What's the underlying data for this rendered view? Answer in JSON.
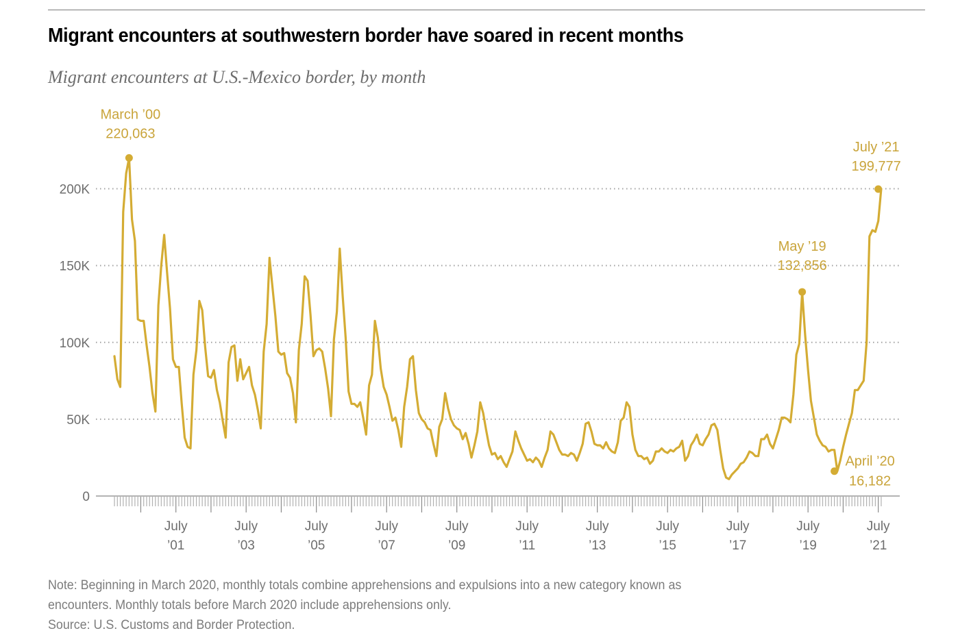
{
  "header": {
    "title": "Migrant encounters at southwestern border have soared in recent months",
    "subtitle": "Migrant encounters at U.S.-Mexico border, by month"
  },
  "footer": {
    "note_line1": "Note: Beginning in March 2020, monthly totals combine apprehensions and expulsions into a new category known as",
    "note_line2": "encounters. Monthly totals before March 2020 include apprehensions only.",
    "source": "Source: U.S. Customs and Border Protection."
  },
  "colors": {
    "line": "#d4ac34",
    "annotation": "#c9a43a",
    "grid": "#a0a0a0",
    "axis": "#9a9a9a",
    "text": "#6d6d6d"
  },
  "chart_data": {
    "type": "line",
    "title": "Migrant encounters at southwestern border have soared in recent months",
    "subtitle": "Migrant encounters at U.S.-Mexico border, by month",
    "xlabel": "",
    "ylabel": "",
    "x_start": "October 1999",
    "x_end": "July 2021",
    "x_frequency": "monthly",
    "ylim": [
      0,
      220000
    ],
    "grid": true,
    "y_ticks": [
      {
        "value": 0,
        "label": "0"
      },
      {
        "value": 50000,
        "label": "50K"
      },
      {
        "value": 100000,
        "label": "100K"
      },
      {
        "value": 150000,
        "label": "150K"
      },
      {
        "value": 200000,
        "label": "200K"
      }
    ],
    "x_ticks": [
      {
        "month_index": 21,
        "line1": "July",
        "line2": "’01"
      },
      {
        "month_index": 45,
        "line1": "July",
        "line2": "’03"
      },
      {
        "month_index": 69,
        "line1": "July",
        "line2": "’05"
      },
      {
        "month_index": 93,
        "line1": "July",
        "line2": "’07"
      },
      {
        "month_index": 117,
        "line1": "July",
        "line2": "’09"
      },
      {
        "month_index": 141,
        "line1": "July",
        "line2": "’11"
      },
      {
        "month_index": 165,
        "line1": "July",
        "line2": "’13"
      },
      {
        "month_index": 189,
        "line1": "July",
        "line2": "’15"
      },
      {
        "month_index": 213,
        "line1": "July",
        "line2": "’17"
      },
      {
        "month_index": 237,
        "line1": "July",
        "line2": "’19"
      },
      {
        "month_index": 261,
        "line1": "July",
        "line2": "’21"
      }
    ],
    "series": [
      {
        "name": "Migrant encounters",
        "values": [
          91000,
          76000,
          71000,
          185000,
          210000,
          220063,
          180000,
          166000,
          115000,
          114000,
          114000,
          98000,
          84000,
          67000,
          55000,
          124000,
          150000,
          170000,
          145000,
          122000,
          89000,
          84000,
          84000,
          60000,
          38000,
          32000,
          31000,
          79000,
          95000,
          127000,
          121000,
          97000,
          78000,
          77000,
          82000,
          69000,
          61000,
          49000,
          38000,
          87000,
          97000,
          98000,
          75000,
          89000,
          76000,
          80000,
          84000,
          72000,
          66000,
          56000,
          44000,
          94000,
          112000,
          155000,
          136000,
          117000,
          94000,
          92000,
          93000,
          80000,
          77000,
          67000,
          48000,
          95000,
          112000,
          143000,
          140000,
          118000,
          91000,
          95000,
          96000,
          94000,
          83000,
          70000,
          52000,
          102000,
          120000,
          161000,
          130000,
          103000,
          68000,
          60000,
          60000,
          58000,
          61000,
          51000,
          40000,
          72000,
          79000,
          114000,
          103000,
          83000,
          71000,
          66000,
          58000,
          49000,
          51000,
          43000,
          32000,
          58000,
          71000,
          89000,
          91000,
          69000,
          54000,
          50000,
          48000,
          44000,
          43000,
          34000,
          26000,
          45000,
          50000,
          67000,
          57000,
          50000,
          46000,
          44000,
          43000,
          37000,
          41000,
          34000,
          25000,
          33000,
          42000,
          61000,
          54000,
          43000,
          33000,
          27000,
          28000,
          24000,
          26000,
          22000,
          19000,
          24000,
          29000,
          42000,
          36000,
          31000,
          27000,
          23000,
          24000,
          22000,
          25000,
          23000,
          19000,
          25000,
          30000,
          42000,
          40000,
          35000,
          30000,
          27000,
          27000,
          26000,
          28000,
          27000,
          23000,
          28000,
          34000,
          47000,
          48000,
          42000,
          34000,
          33000,
          33000,
          31000,
          35000,
          31000,
          29000,
          28000,
          35000,
          49000,
          51000,
          61000,
          58000,
          40000,
          30000,
          26000,
          26000,
          24000,
          25000,
          21000,
          23000,
          29000,
          29000,
          31000,
          29000,
          28000,
          30000,
          29000,
          31000,
          32000,
          36000,
          23000,
          26000,
          33000,
          36000,
          40000,
          34000,
          33000,
          37000,
          40000,
          46000,
          47000,
          43000,
          30000,
          18000,
          12000,
          11000,
          14000,
          16000,
          18000,
          21000,
          22000,
          25000,
          29000,
          28000,
          26000,
          26000,
          37000,
          37000,
          40000,
          34000,
          31000,
          37000,
          43000,
          51000,
          51000,
          50000,
          48000,
          66000,
          92000,
          99000,
          132856,
          105000,
          82000,
          62000,
          51000,
          40000,
          36000,
          33000,
          32000,
          29000,
          30000,
          30000,
          16182,
          23000,
          32000,
          40000,
          47000,
          54000,
          69000,
          69000,
          72000,
          75000,
          100000,
          169000,
          173000,
          172000,
          179000,
          199777
        ]
      }
    ],
    "annotations": [
      {
        "label": "March ’00",
        "value_label": "220,063",
        "month_index": 5,
        "value": 220063
      },
      {
        "label": "May ’19",
        "value_label": "132,856",
        "month_index": 235,
        "value": 132856
      },
      {
        "label": "April ’20",
        "value_label": "16,182",
        "month_index": 246,
        "value": 16182
      },
      {
        "label": "July ’21",
        "value_label": "199,777",
        "month_index": 261,
        "value": 199777
      }
    ]
  }
}
